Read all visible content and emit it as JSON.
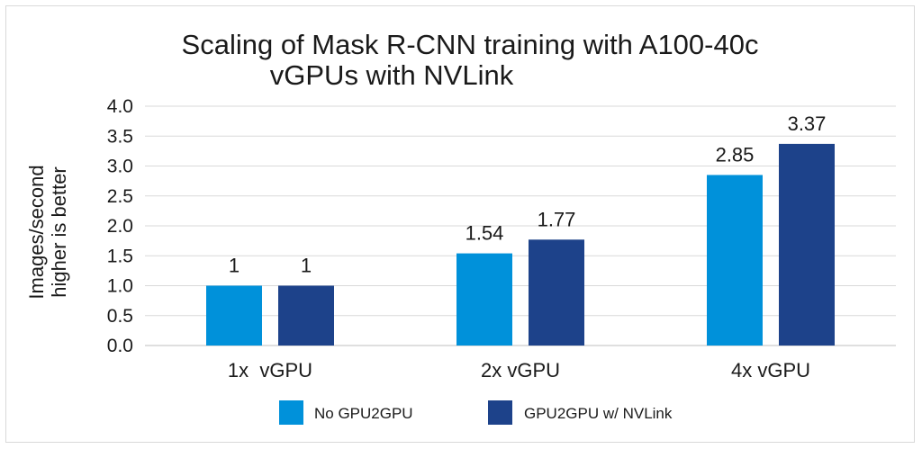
{
  "chart_data": {
    "type": "bar",
    "title_lines": [
      "Scaling of Mask R-CNN training with A100-40c",
      "vGPUs with NVLink"
    ],
    "ylabel_lines": [
      "Images/second",
      "higher is better"
    ],
    "xlabel": "",
    "categories": [
      "1x  vGPU",
      "2x vGPU",
      "4x vGPU"
    ],
    "ylim": [
      0,
      4.0
    ],
    "yticks": [
      "0.0",
      "0.5",
      "1.0",
      "1.5",
      "2.0",
      "2.5",
      "3.0",
      "3.5",
      "4.0"
    ],
    "grid": true,
    "legend_position": "bottom",
    "series": [
      {
        "name": "No GPU2GPU",
        "values": [
          1,
          1.54,
          2.85
        ],
        "labels": [
          "1",
          "1.54",
          "2.85"
        ],
        "color": "#0091da"
      },
      {
        "name": "GPU2GPU w/ NVLink",
        "values": [
          1,
          1.77,
          3.37
        ],
        "labels": [
          "1",
          "1.77",
          "3.37"
        ],
        "color": "#1d428a"
      }
    ]
  }
}
